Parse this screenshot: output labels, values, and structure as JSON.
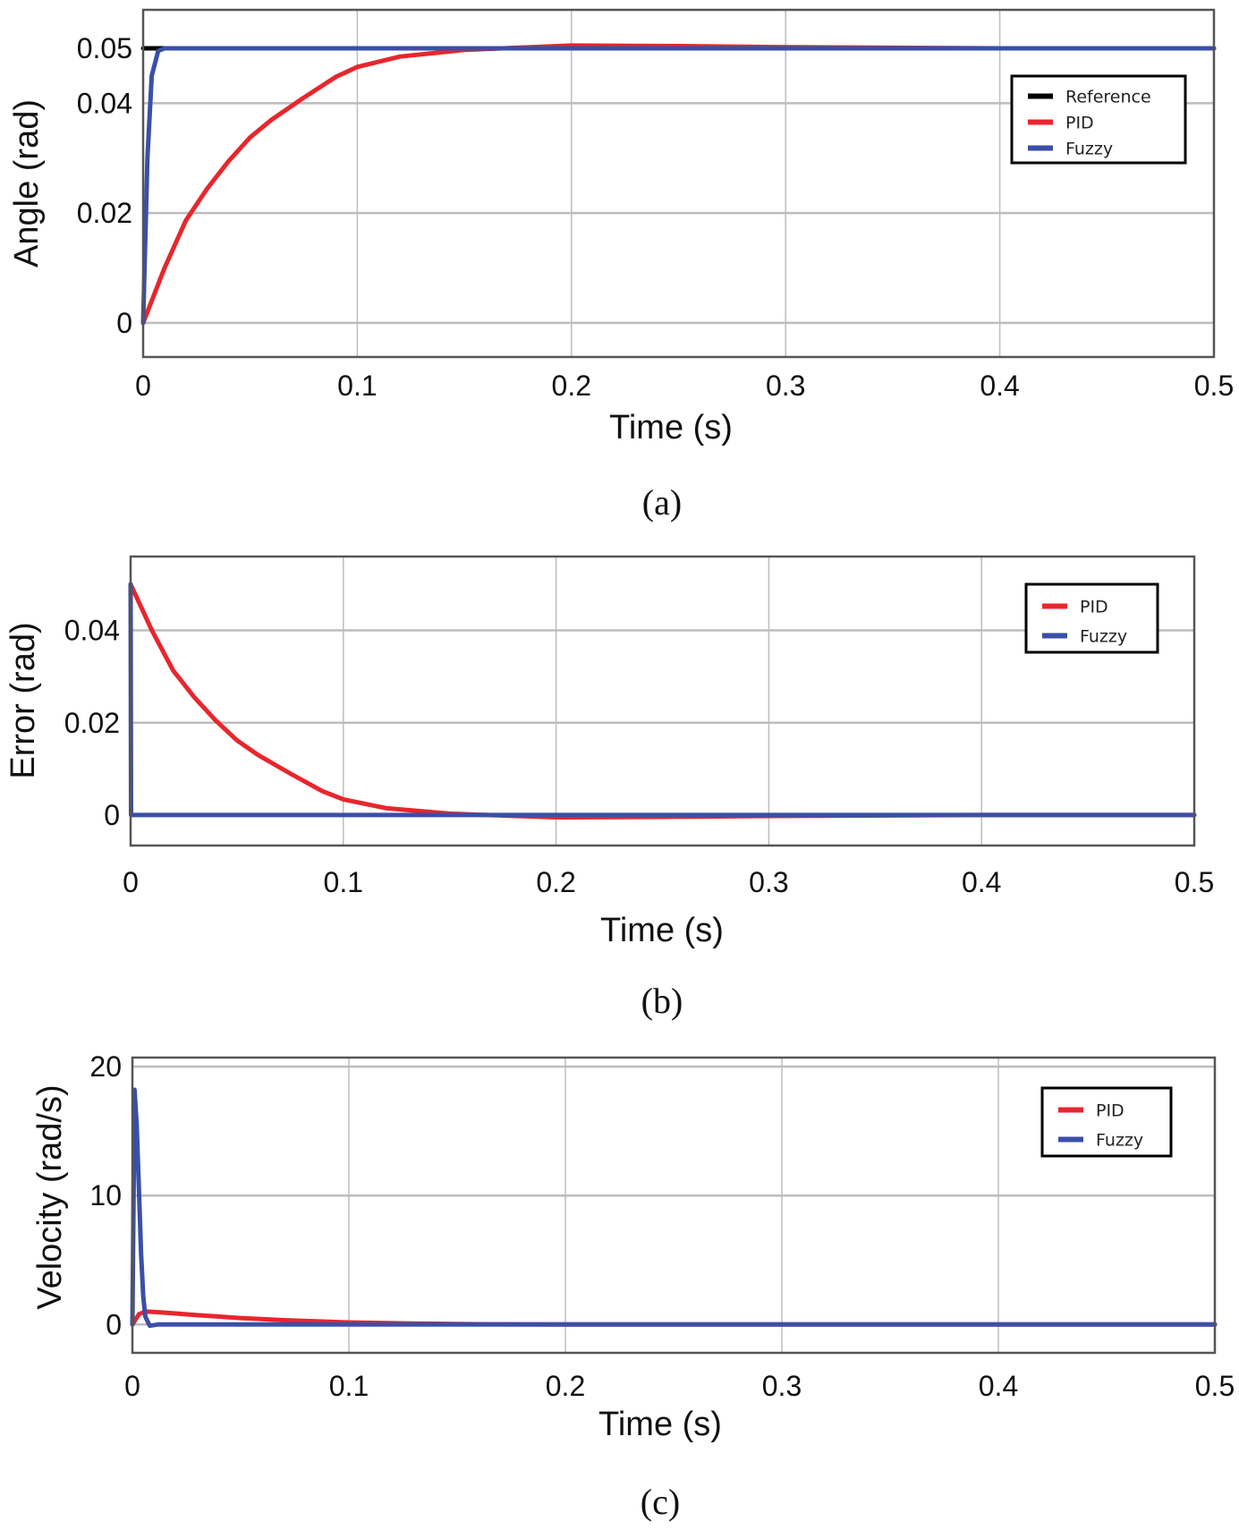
{
  "colors": {
    "reference": "#000000",
    "pid": "#e8262d",
    "fuzzy": "#3a4fa8",
    "grid": "#bdbdbd",
    "frame": "#555555"
  },
  "chart_data": [
    {
      "type": "line",
      "caption": "(a)",
      "xlabel": "Time (s)",
      "ylabel": "Angle (rad)",
      "xlim": [
        0,
        0.5
      ],
      "ylim": [
        -0.0062,
        0.057
      ],
      "xticks": [
        "0",
        "0.1",
        "0.2",
        "0.3",
        "0.4",
        "0.5"
      ],
      "xtick_values": [
        0,
        0.1,
        0.2,
        0.3,
        0.4,
        0.5
      ],
      "yticks": [
        "0",
        "0.02",
        "0.04",
        "0.05"
      ],
      "ytick_values": [
        0,
        0.02,
        0.04,
        0.05
      ],
      "grid": true,
      "legend_position": "top-right",
      "series": [
        {
          "name": "Reference",
          "color_key": "reference",
          "x": [
            0,
            0.5
          ],
          "y": [
            0.05,
            0.05
          ]
        },
        {
          "name": "PID",
          "color_key": "pid",
          "x": [
            0,
            0.01,
            0.02,
            0.03,
            0.04,
            0.05,
            0.06,
            0.075,
            0.09,
            0.1,
            0.12,
            0.15,
            0.2,
            0.25,
            0.3,
            0.4,
            0.5
          ],
          "y": [
            0,
            0.01,
            0.0187,
            0.0245,
            0.0295,
            0.0338,
            0.037,
            0.041,
            0.0448,
            0.0466,
            0.0485,
            0.0497,
            0.0505,
            0.0504,
            0.0502,
            0.05,
            0.05
          ]
        },
        {
          "name": "Fuzzy",
          "color_key": "fuzzy",
          "x": [
            0,
            0.002,
            0.004,
            0.007,
            0.01,
            0.5
          ],
          "y": [
            0,
            0.03,
            0.045,
            0.0495,
            0.05,
            0.05
          ]
        }
      ]
    },
    {
      "type": "line",
      "caption": "(b)",
      "xlabel": "Time (s)",
      "ylabel": "Error (rad)",
      "xlim": [
        0,
        0.5
      ],
      "ylim": [
        -0.0066,
        0.056
      ],
      "xticks": [
        "0",
        "0.1",
        "0.2",
        "0.3",
        "0.4",
        "0.5"
      ],
      "xtick_values": [
        0,
        0.1,
        0.2,
        0.3,
        0.4,
        0.5
      ],
      "yticks": [
        "0",
        "0.02",
        "0.04"
      ],
      "ytick_values": [
        0,
        0.02,
        0.04
      ],
      "grid": true,
      "legend_position": "top-right",
      "series": [
        {
          "name": "PID",
          "color_key": "pid",
          "x": [
            0,
            0.01,
            0.02,
            0.03,
            0.04,
            0.05,
            0.06,
            0.075,
            0.09,
            0.1,
            0.12,
            0.15,
            0.2,
            0.25,
            0.3,
            0.4,
            0.5
          ],
          "y": [
            0.05,
            0.04,
            0.0313,
            0.0255,
            0.0205,
            0.0162,
            0.013,
            0.009,
            0.0052,
            0.0034,
            0.0015,
            0.0003,
            -0.0005,
            -0.0004,
            -0.0002,
            0,
            0
          ]
        },
        {
          "name": "Fuzzy",
          "color_key": "fuzzy",
          "x": [
            0,
            0.0002,
            0.002,
            0.004,
            0.5
          ],
          "y": [
            0.05,
            0.0,
            0,
            0,
            0
          ]
        }
      ]
    },
    {
      "type": "line",
      "caption": "(c)",
      "xlabel": "Time (s)",
      "ylabel": "Velocity (rad/s)",
      "xlim": [
        0,
        0.5
      ],
      "ylim": [
        -2.2,
        20.7
      ],
      "xticks": [
        "0",
        "0.1",
        "0.2",
        "0.3",
        "0.4",
        "0.5"
      ],
      "xtick_values": [
        0,
        0.1,
        0.2,
        0.3,
        0.4,
        0.5
      ],
      "yticks": [
        "0",
        "10",
        "20"
      ],
      "ytick_values": [
        0,
        10,
        20
      ],
      "grid": true,
      "legend_position": "top-right",
      "series": [
        {
          "name": "PID",
          "color_key": "pid",
          "x": [
            0,
            0.003,
            0.006,
            0.01,
            0.02,
            0.03,
            0.05,
            0.07,
            0.1,
            0.13,
            0.16,
            0.2,
            0.3,
            0.5
          ],
          "y": [
            0,
            0.8,
            1.0,
            0.98,
            0.85,
            0.72,
            0.5,
            0.33,
            0.16,
            0.07,
            0.02,
            0,
            0,
            0
          ]
        },
        {
          "name": "Fuzzy",
          "color_key": "fuzzy",
          "x": [
            0,
            0.001,
            0.002,
            0.003,
            0.004,
            0.005,
            0.006,
            0.008,
            0.012,
            0.5
          ],
          "y": [
            0,
            18.2,
            15.5,
            10.5,
            5.5,
            2.2,
            0.6,
            -0.1,
            0,
            0
          ]
        }
      ]
    }
  ]
}
